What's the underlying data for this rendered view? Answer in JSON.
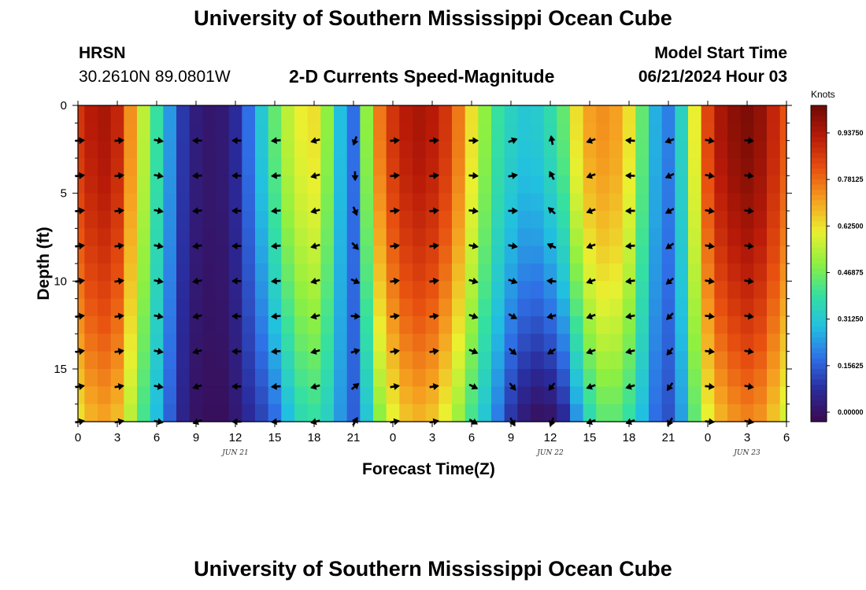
{
  "header": {
    "title": "University of Southern Mississippi Ocean Cube",
    "station": "HRSN",
    "coords": "30.2610N  89.0801W",
    "subtitle": "2-D Currents Speed-Magnitude",
    "start_label": "Model Start Time",
    "start_value": "06/21/2024 Hour 03"
  },
  "footer": {
    "title": "University of Southern Mississippi Ocean Cube"
  },
  "chart_data": {
    "type": "heatmap",
    "title": "2-D Currents Speed-Magnitude",
    "xlabel": "Forecast Time(Z)",
    "ylabel": "Depth (ft)",
    "x_hours": [
      0,
      54
    ],
    "x_ticks": [
      "0",
      "3",
      "6",
      "9",
      "12",
      "15",
      "18",
      "21",
      "0",
      "3",
      "6",
      "9",
      "12",
      "15",
      "18",
      "21",
      "0",
      "3",
      "6"
    ],
    "date_labels": [
      {
        "hour": 12,
        "text": "JUN 21"
      },
      {
        "hour": 36,
        "text": "JUN 22"
      },
      {
        "hour": 51,
        "text": "JUN 23"
      }
    ],
    "ylim": [
      0,
      18
    ],
    "y_ticks": [
      0,
      5,
      10,
      15
    ],
    "y_inverted": true,
    "colorbar": {
      "unit": "Knots",
      "range": [
        0,
        1.0
      ],
      "ticks": [
        "0.93750",
        "0.78125",
        "0.62500",
        "0.46875",
        "0.31250",
        "0.15625",
        "0.00000"
      ],
      "colors": [
        "#3a0a4e",
        "#2a2a9a",
        "#2f6fe6",
        "#22c0e0",
        "#35e0a0",
        "#8ef040",
        "#eaf030",
        "#f5a020",
        "#e85010",
        "#b81a08",
        "#6e0a05"
      ]
    },
    "speed_by_hour": {
      "hours": [
        0,
        1,
        2,
        3,
        4,
        5,
        6,
        7,
        8,
        9,
        10,
        11,
        12,
        13,
        14,
        15,
        16,
        17,
        18,
        19,
        20,
        21,
        22,
        23,
        24,
        25,
        26,
        27,
        28,
        29,
        30,
        31,
        32,
        33,
        34,
        35,
        36,
        37,
        38,
        39,
        40,
        41,
        42,
        43,
        44,
        45,
        46,
        47,
        48,
        49,
        50,
        51,
        52,
        53,
        54
      ],
      "surface": [
        0.85,
        0.9,
        0.92,
        0.88,
        0.72,
        0.55,
        0.4,
        0.25,
        0.12,
        0.06,
        0.04,
        0.05,
        0.1,
        0.2,
        0.32,
        0.45,
        0.55,
        0.6,
        0.62,
        0.5,
        0.3,
        0.2,
        0.5,
        0.75,
        0.85,
        0.9,
        0.92,
        0.9,
        0.85,
        0.75,
        0.62,
        0.5,
        0.4,
        0.35,
        0.32,
        0.33,
        0.38,
        0.45,
        0.62,
        0.7,
        0.72,
        0.7,
        0.62,
        0.45,
        0.28,
        0.22,
        0.35,
        0.6,
        0.82,
        0.92,
        0.96,
        0.98,
        0.95,
        0.88,
        0.8
      ],
      "bottom": [
        0.62,
        0.68,
        0.7,
        0.67,
        0.55,
        0.42,
        0.3,
        0.18,
        0.08,
        0.03,
        0.02,
        0.02,
        0.05,
        0.1,
        0.14,
        0.2,
        0.3,
        0.38,
        0.4,
        0.35,
        0.25,
        0.18,
        0.32,
        0.5,
        0.6,
        0.66,
        0.68,
        0.66,
        0.6,
        0.52,
        0.42,
        0.32,
        0.22,
        0.12,
        0.06,
        0.03,
        0.04,
        0.1,
        0.25,
        0.38,
        0.45,
        0.45,
        0.4,
        0.3,
        0.2,
        0.16,
        0.26,
        0.45,
        0.6,
        0.68,
        0.72,
        0.74,
        0.72,
        0.66,
        0.58
      ]
    },
    "vectors": {
      "hours": [
        0,
        3,
        6,
        9,
        12,
        15,
        18,
        21,
        24,
        27,
        30,
        33,
        36,
        39,
        42,
        45,
        48,
        51
      ],
      "depths": [
        2,
        4,
        6,
        8,
        10,
        12,
        14,
        16,
        18
      ],
      "angle_deg": [
        5,
        5,
        -10,
        180,
        180,
        185,
        195,
        250,
        5,
        5,
        0,
        20,
        100,
        200,
        175,
        200,
        -10,
        -5
      ],
      "deep_angle_deg": [
        10,
        10,
        -10,
        200,
        180,
        185,
        195,
        60,
        10,
        10,
        -30,
        -60,
        -110,
        200,
        200,
        240,
        -5,
        -10
      ]
    }
  }
}
